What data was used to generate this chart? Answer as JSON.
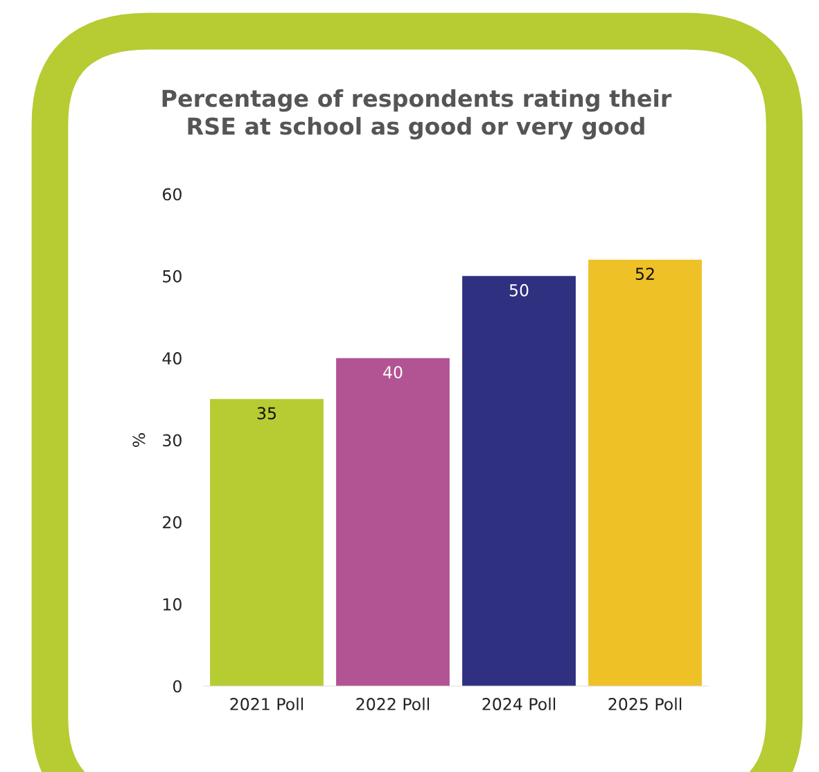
{
  "chart_data": {
    "type": "bar",
    "title": "Percentage of respondents rating their RSE at school as good or very good",
    "ylabel": "%",
    "categories": [
      "2021 Poll",
      "2022 Poll",
      "2024 Poll",
      "2025 Poll"
    ],
    "values": [
      35,
      40,
      50,
      52
    ],
    "colors": [
      "#b7cb33",
      "#b25493",
      "#2f3080",
      "#eec127"
    ],
    "ylim": [
      0,
      60
    ],
    "yticks": [
      0,
      10,
      20,
      30,
      40,
      50,
      60
    ],
    "grid": false,
    "data_labels": true
  }
}
